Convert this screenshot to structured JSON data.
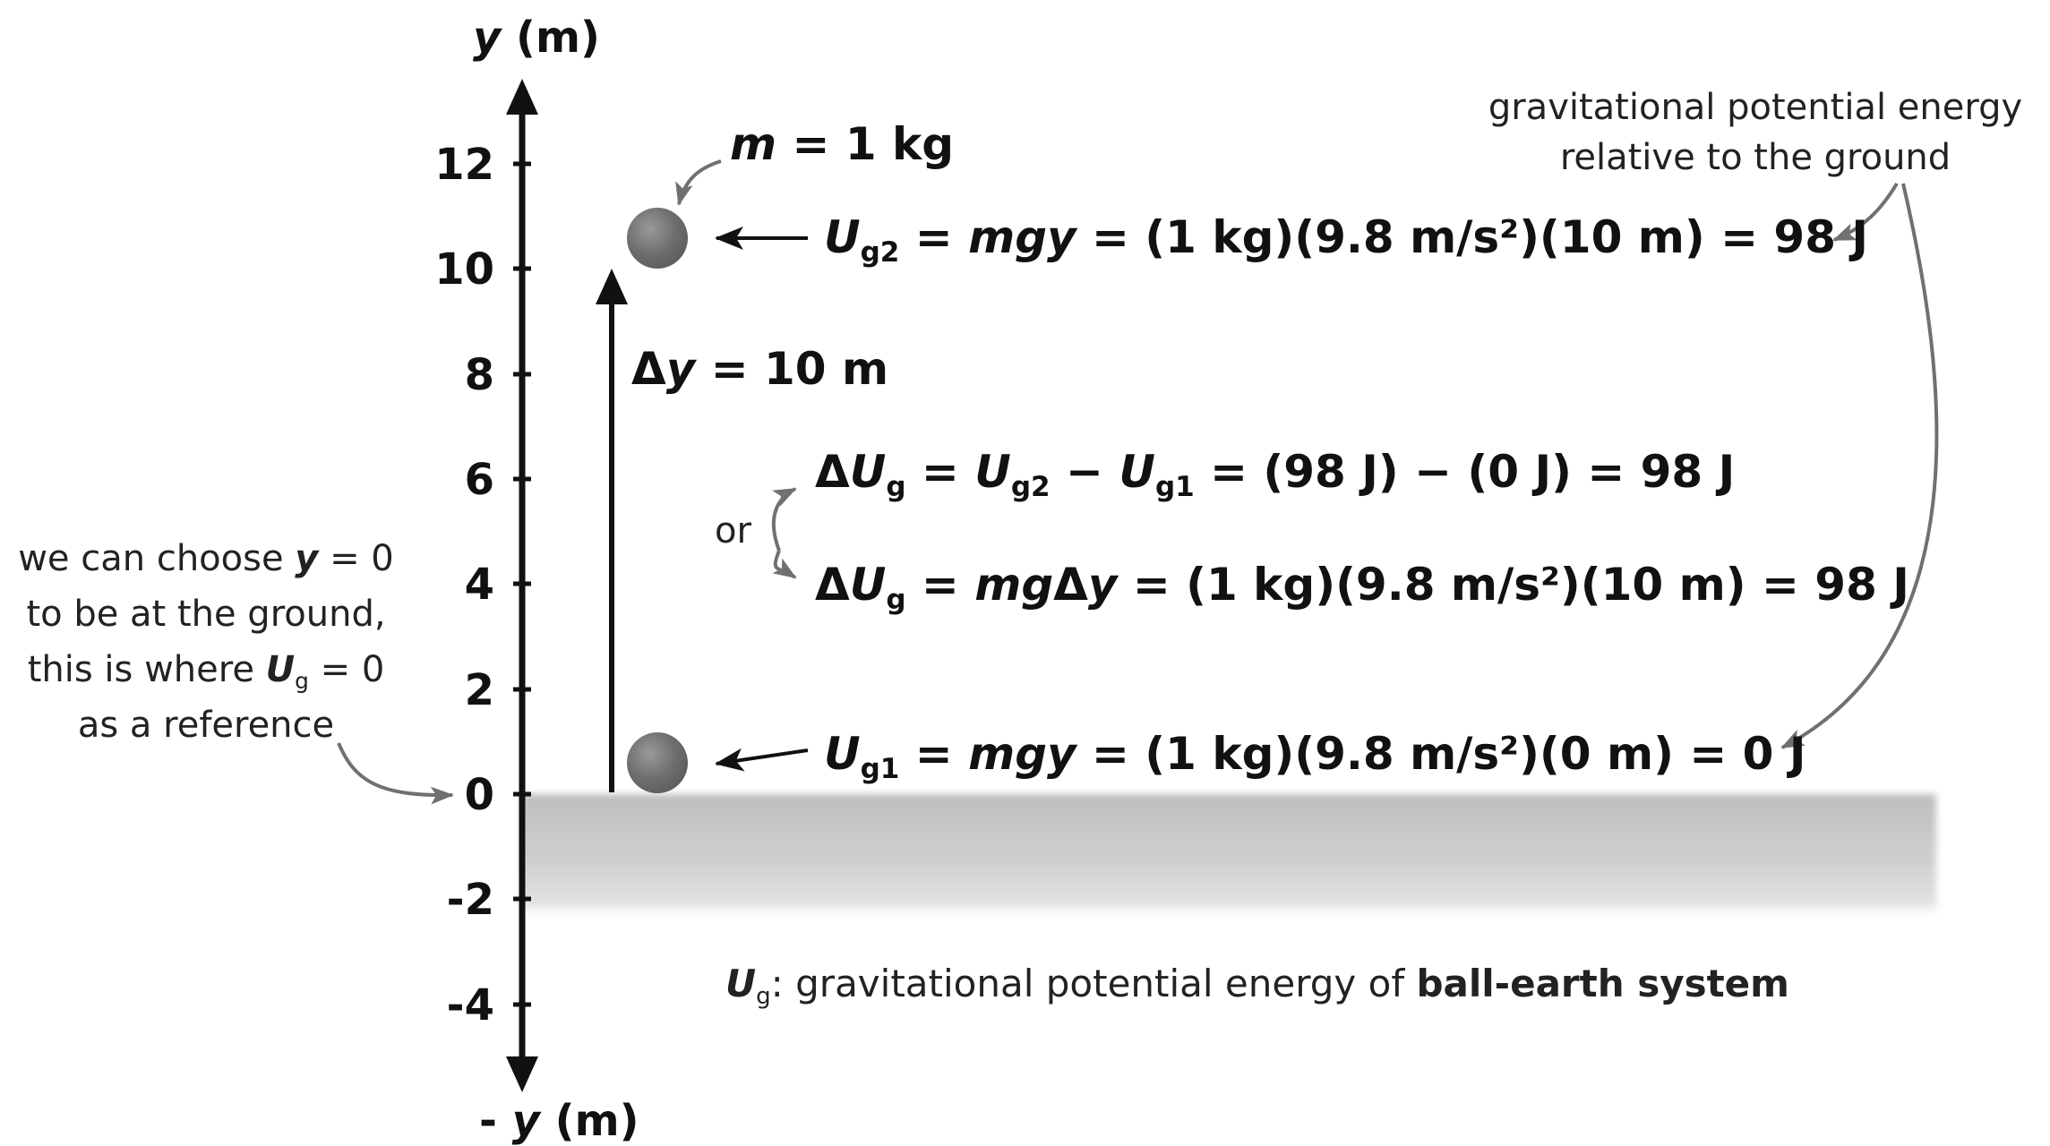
{
  "axis": {
    "y_top_label": "y (m)",
    "y_bottom_label": "- y (m)",
    "ticks": [
      "12",
      "10",
      "8",
      "6",
      "4",
      "2",
      "0",
      "-2",
      "-4"
    ]
  },
  "mass_label": "m = 1 kg",
  "delta_y_label": "Δy = 10 m",
  "eq_ug2": "U_g2 = mgy = (1 kg)(9.8 m/s²)(10 m) = 98 J",
  "eq_delta_ug_1": "ΔU_g = U_g2 − U_g1 = (98 J) − (0 J) = 98 J",
  "or_label": "or",
  "eq_delta_ug_2": "ΔU_g = mgΔy = (1 kg)(9.8 m/s²)(10 m) = 98 J",
  "eq_ug1": "U_g1 = mgy = (1 kg)(9.8 m/s²)(0 m) = 0 J",
  "note_right": {
    "line1": "gravitational potential energy",
    "line2": "relative to the ground"
  },
  "note_left": {
    "line1": "we can choose y = 0",
    "line2": "to be at the ground,",
    "line3": "this is where U_g = 0",
    "line4": "as a reference"
  },
  "caption": {
    "prefix": ": gravitational potential energy of ",
    "bold": "ball-earth system"
  },
  "colors": {
    "axis": "#111111",
    "annotation_arrow": "#707070",
    "ball": "#6f6f6f",
    "ground": "#c8c8c8"
  }
}
